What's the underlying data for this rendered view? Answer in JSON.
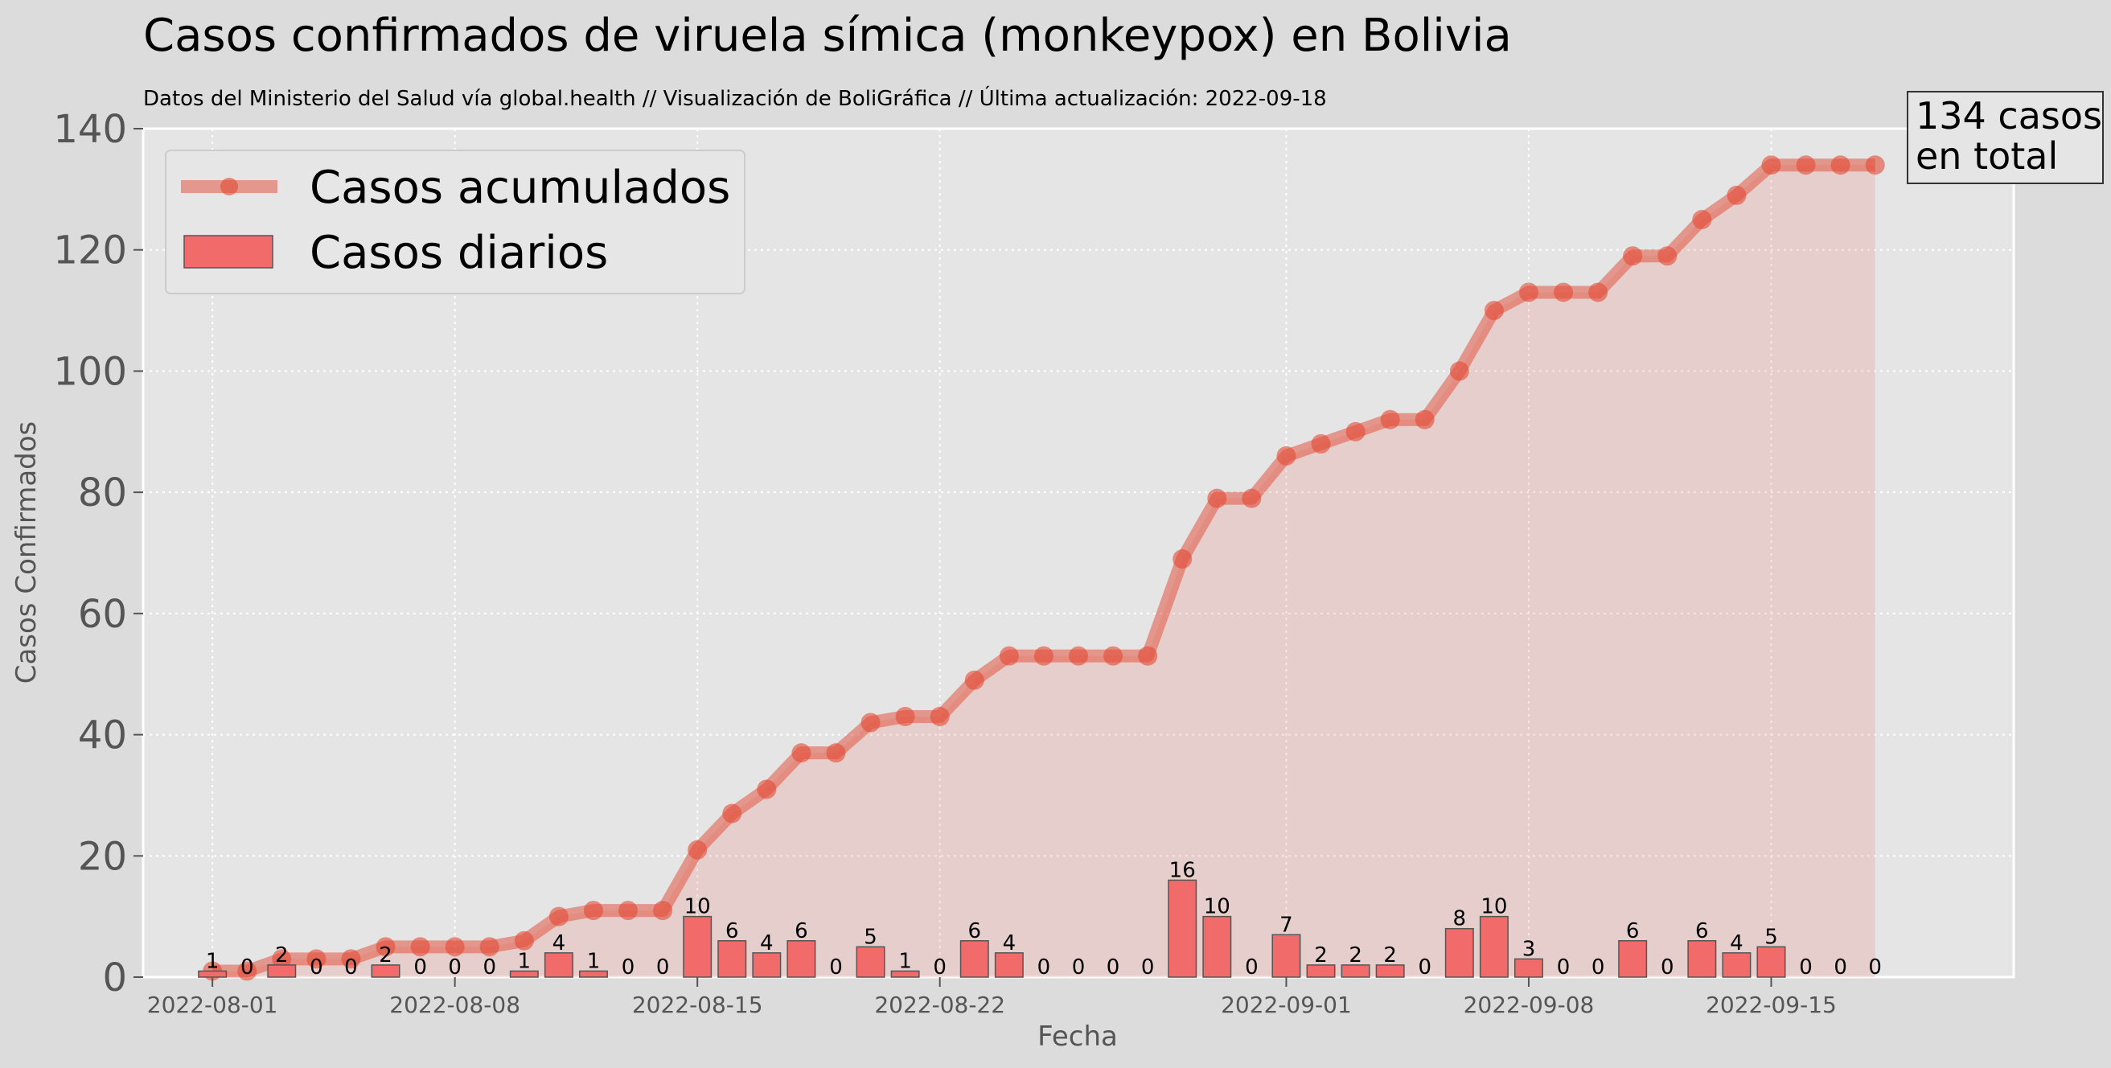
{
  "chart_data": {
    "type": "bar",
    "title": "Casos confirmados de viruela símica (monkeypox) en Bolivia",
    "subtitle": "Datos del Ministerio del Salud vía global.health  //  Visualización de BoliGráfica  //  Última actualización: 2022-09-18",
    "xlabel": "Fecha",
    "ylabel": "Casos Confirmados",
    "ylim": [
      0,
      140
    ],
    "yticks": [
      0,
      20,
      40,
      60,
      80,
      100,
      120,
      140
    ],
    "xlim": [
      "2022-07-30",
      "2022-09-22"
    ],
    "xticks": [
      "2022-08-01",
      "2022-08-08",
      "2022-08-15",
      "2022-08-22",
      "2022-09-01",
      "2022-09-08",
      "2022-09-15"
    ],
    "grid": true,
    "legend_position": "top-left",
    "annotation": {
      "lines": [
        "134 casos",
        "en total"
      ]
    },
    "x": [
      "2022-08-01",
      "2022-08-02",
      "2022-08-03",
      "2022-08-04",
      "2022-08-05",
      "2022-08-06",
      "2022-08-07",
      "2022-08-08",
      "2022-08-09",
      "2022-08-10",
      "2022-08-11",
      "2022-08-12",
      "2022-08-13",
      "2022-08-14",
      "2022-08-15",
      "2022-08-16",
      "2022-08-17",
      "2022-08-18",
      "2022-08-19",
      "2022-08-20",
      "2022-08-21",
      "2022-08-22",
      "2022-08-23",
      "2022-08-24",
      "2022-08-25",
      "2022-08-26",
      "2022-08-27",
      "2022-08-28",
      "2022-08-29",
      "2022-08-30",
      "2022-08-31",
      "2022-09-01",
      "2022-09-02",
      "2022-09-03",
      "2022-09-04",
      "2022-09-05",
      "2022-09-06",
      "2022-09-07",
      "2022-09-08",
      "2022-09-09",
      "2022-09-10",
      "2022-09-11",
      "2022-09-12",
      "2022-09-13",
      "2022-09-14",
      "2022-09-15",
      "2022-09-16",
      "2022-09-17",
      "2022-09-18"
    ],
    "series": [
      {
        "name": "Casos acumulados",
        "type": "line",
        "color": "#e24a33",
        "values": [
          1,
          1,
          3,
          3,
          3,
          5,
          5,
          5,
          5,
          6,
          10,
          11,
          11,
          11,
          21,
          27,
          31,
          37,
          37,
          42,
          43,
          43,
          49,
          53,
          53,
          53,
          53,
          53,
          69,
          79,
          79,
          86,
          88,
          90,
          92,
          92,
          100,
          110,
          113,
          113,
          113,
          119,
          119,
          125,
          129,
          134,
          134,
          134,
          134
        ]
      },
      {
        "name": "Casos diarios",
        "type": "bar",
        "color": "#f26b6b",
        "values": [
          1,
          0,
          2,
          0,
          0,
          2,
          0,
          0,
          0,
          1,
          4,
          1,
          0,
          0,
          10,
          6,
          4,
          6,
          0,
          5,
          1,
          0,
          6,
          4,
          0,
          0,
          0,
          0,
          16,
          10,
          0,
          7,
          2,
          2,
          2,
          0,
          8,
          10,
          3,
          0,
          0,
          6,
          0,
          6,
          4,
          5,
          0,
          0,
          0
        ]
      }
    ]
  }
}
